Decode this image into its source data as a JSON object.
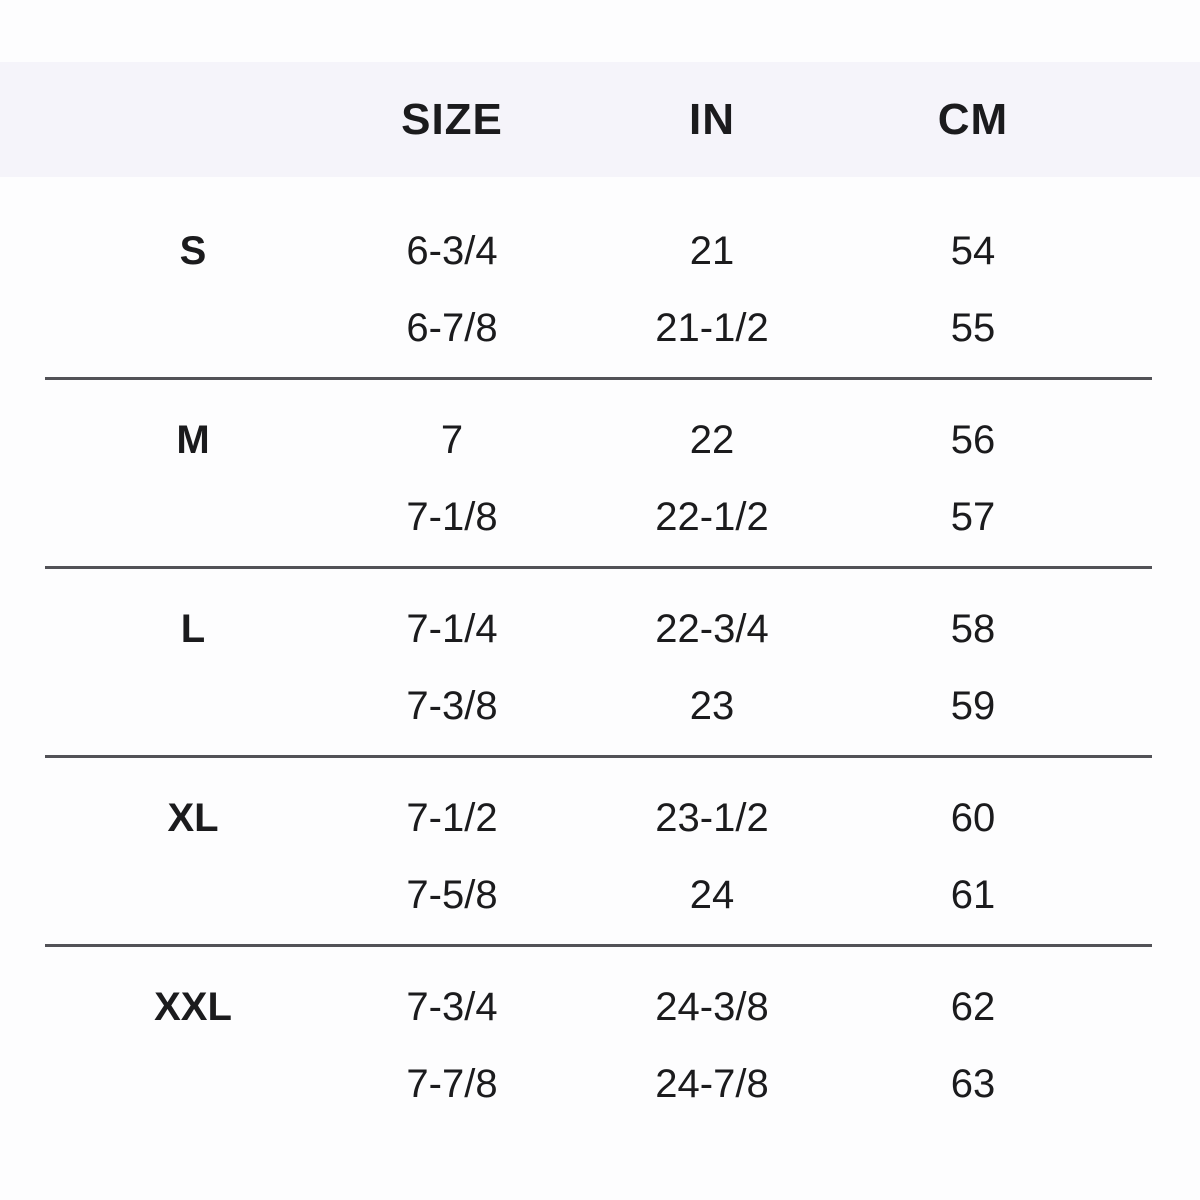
{
  "colors": {
    "background": "#fdfdfe",
    "header_band_bg": "#f5f4fa",
    "text": "#1b1b1d",
    "divider": "#525257"
  },
  "chart_data": {
    "type": "table",
    "columns": [
      "",
      "SIZE",
      "IN",
      "CM"
    ],
    "groups": [
      {
        "label": "S",
        "rows": [
          [
            "6-3/4",
            "21",
            "54"
          ],
          [
            "6-7/8",
            "21-1/2",
            "55"
          ]
        ]
      },
      {
        "label": "M",
        "rows": [
          [
            "7",
            "22",
            "56"
          ],
          [
            "7-1/8",
            "22-1/2",
            "57"
          ]
        ]
      },
      {
        "label": "L",
        "rows": [
          [
            "7-1/4",
            "22-3/4",
            "58"
          ],
          [
            "7-3/8",
            "23",
            "59"
          ]
        ]
      },
      {
        "label": "XL",
        "rows": [
          [
            "7-1/2",
            "23-1/2",
            "60"
          ],
          [
            "7-5/8",
            "24",
            "61"
          ]
        ]
      },
      {
        "label": "XXL",
        "rows": [
          [
            "7-3/4",
            "24-3/8",
            "62"
          ],
          [
            "7-7/8",
            "24-7/8",
            "63"
          ]
        ]
      }
    ]
  }
}
